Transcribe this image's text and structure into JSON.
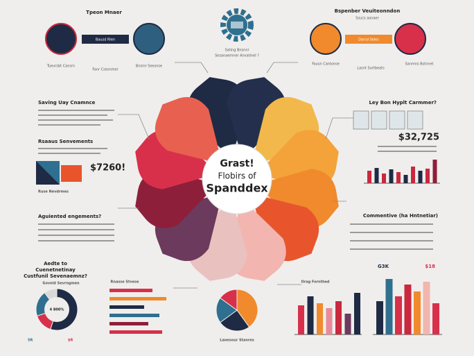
{
  "header": {
    "left_title": "Tpeon Mnaer",
    "left_badge": "Bausd Rlen",
    "left_caption_1": "Tuevrsbt Cansrn",
    "left_caption_2": "Fanr Csesnmer",
    "left_caption_3": "Bnsinr Seesnse",
    "center_caption_1": "Sating Bnsnnr",
    "center_caption_2": "Sesanaemner Anvatinel ?",
    "right_title": "Bspenber Veuiteonndon",
    "right_subtitle": "Ssucs aanaer",
    "right_badge": "Darsd Seles",
    "right_caption_1": "Fausn Cantonse",
    "right_caption_2": "Lasnt Surtbeats",
    "right_caption_3": "Sanmns Bstnnet"
  },
  "center": {
    "line1": "Grast!",
    "line2": "Flobirs of",
    "line3": "Spanddex"
  },
  "left": {
    "panel1_title": "Saving Uay Cnamnce",
    "panel2_title": "Rsaaus Senvements",
    "stat": "$7260!",
    "stat_caption": "Ruse Nevdrmes",
    "question": "Aguiented engements?",
    "bottom_question_1": "Aedte to",
    "bottom_question_2": "Cuenetnetinay",
    "bottom_question_3": "Custfunil Sevenaemnz?",
    "donut_title": "Goveid Sevrngmen",
    "donut_label": "4 800%",
    "hbar_title": "Rnasse Stvese",
    "foot_1": "5R",
    "foot_2": "$R"
  },
  "right": {
    "question": "Ley Bon Hyplt Carmmer?",
    "stat": "$32,725",
    "list_title": "Commentive (ha Hntnetiar)",
    "bar_caption": "Orag Fornthed",
    "label_1": "G3K",
    "label_2": "$18"
  },
  "bottom": {
    "pie_caption": "Lanesour Stanres"
  },
  "charts": {
    "right_bars": {
      "values": [
        18,
        22,
        14,
        20,
        16,
        12,
        24,
        18,
        21,
        34
      ],
      "colors": [
        "#c9283e",
        "#1f2a44",
        "#c9283e",
        "#1f2a44",
        "#c9283e",
        "#1f2a44",
        "#c9283e",
        "#1f2a44",
        "#c9283e",
        "#8e1f3a"
      ]
    },
    "mid_bars": {
      "values": [
        42,
        55,
        45,
        38,
        48,
        30,
        60
      ],
      "colors": [
        "#d8304a",
        "#1f2a44",
        "#f08a2c",
        "#e88a9a",
        "#c9283e",
        "#6c3a5c",
        "#1f2a44"
      ]
    },
    "right_bottom_bars": {
      "values": [
        48,
        80,
        55,
        72,
        62,
        76,
        45
      ],
      "colors": [
        "#1f2a44",
        "#2f6f8f",
        "#d8304a",
        "#c9283e",
        "#f08a2c",
        "#f2b5b0",
        "#d8304a"
      ]
    },
    "hbars": {
      "values": [
        62,
        82,
        50,
        72,
        56,
        76
      ],
      "colors": [
        "#d8304a",
        "#f08a2c",
        "#1f2a44",
        "#2f6f8f",
        "#8e1f3a",
        "#d8304a"
      ]
    },
    "donut": {
      "values": [
        55,
        15,
        20,
        10
      ],
      "colors": [
        "#1f2a44",
        "#d8304a",
        "#2f6f8f",
        "#d9d9d9"
      ]
    },
    "pie": {
      "values": [
        40,
        25,
        20,
        15
      ],
      "colors": [
        "#f08a2c",
        "#1f2a44",
        "#2f6f8f",
        "#d8304a"
      ]
    }
  }
}
